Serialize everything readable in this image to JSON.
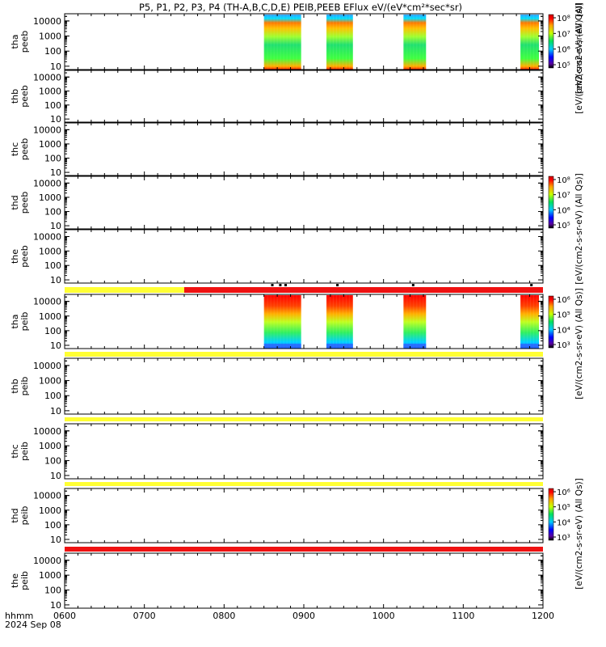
{
  "title": "P5, P1, P2, P3, P4 (TH-A,B,C,D,E) PEIB,PEEB EFlux eV/(eV*cm²*sec*sr)",
  "x_axis_label": "hhmm",
  "date_label": "2024 Sep 08",
  "colorbar_labels": {
    "peeb_top": "[eV/(cm2-s-sr-eV) (All",
    "peeb_mid": "[eV/(cm2-s-sr-eV) (All Qs)]",
    "peeb_overlap": "[eV/(cm2-s-sr-eV) (All Qs)]",
    "peib_main": "[eV/(cm2-s-sr-eV) (All Qs)]",
    "peib_bottom": "[eV/(cm2-s-sr-eV) (All Qs)]"
  },
  "chart_data": {
    "type": "heatmap",
    "x_ticks": [
      "0600",
      "0700",
      "0800",
      "0900",
      "1000",
      "1100",
      "1200"
    ],
    "x_range": [
      "0600",
      "1200"
    ],
    "y_scale": "log",
    "y_ticks": [
      "10",
      "100",
      "1000",
      "10000"
    ],
    "y_range": [
      6,
      30000
    ],
    "panels": [
      {
        "probe": "thc_placeholder",
        "note": ""
      }
    ],
    "panels_list": [
      {
        "name": "tha peeb",
        "line1": "tha",
        "line2": "peeb",
        "bursts": [
          {
            "start": "0830",
            "end": "0858"
          },
          {
            "start": "0917",
            "end": "0937"
          },
          {
            "start": "1015",
            "end": "1032"
          },
          {
            "start": "1143",
            "end": "1157"
          }
        ]
      },
      {
        "name": "thb peeb",
        "line1": "thb",
        "line2": "peeb",
        "bursts": []
      },
      {
        "name": "thc peeb",
        "line1": "thc",
        "line2": "peeb",
        "bursts": []
      },
      {
        "name": "thd peeb",
        "line1": "thd",
        "line2": "peeb",
        "bursts": []
      },
      {
        "name": "the peeb",
        "line1": "the",
        "line2": "peeb",
        "bursts": []
      },
      {
        "name": "tha peib",
        "line1": "tha",
        "line2": "peib",
        "bursts": [
          {
            "start": "0830",
            "end": "0858"
          },
          {
            "start": "0917",
            "end": "0937"
          },
          {
            "start": "1015",
            "end": "1032"
          },
          {
            "start": "1143",
            "end": "1157"
          }
        ]
      },
      {
        "name": "thb peib",
        "line1": "thb",
        "line2": "peib",
        "bursts": []
      },
      {
        "name": "thc peib",
        "line1": "thc",
        "line2": "peib",
        "bursts": []
      },
      {
        "name": "thd peib",
        "line1": "thd",
        "line2": "peib",
        "bursts": []
      },
      {
        "name": "the peib",
        "line1": "the",
        "line2": "peib",
        "bursts": []
      }
    ],
    "colorbars": [
      {
        "for": "tha peeb",
        "ticks": [
          "10⁸",
          "10⁷",
          "10⁶",
          "10⁵"
        ]
      },
      {
        "for": "thd peeb",
        "ticks": [
          "10⁸",
          "10⁷",
          "10⁶",
          "10⁵"
        ]
      },
      {
        "for": "tha peib",
        "ticks": [
          "10⁶",
          "10⁵",
          "10⁴",
          "10³"
        ]
      },
      {
        "for": "thd peib",
        "ticks": [
          "10⁶",
          "10⁵",
          "10⁴",
          "10³"
        ]
      }
    ],
    "mode_bars": [
      {
        "after": "the peeb",
        "segments": [
          {
            "start": "0600",
            "end": "0730",
            "color": "#ffff33"
          },
          {
            "start": "0730",
            "end": "1200",
            "color": "#ee1111"
          }
        ]
      },
      {
        "after": "tha peib",
        "segments": [
          {
            "start": "0600",
            "end": "1200",
            "color": "#ffff33"
          }
        ]
      },
      {
        "after": "thb peib",
        "segments": [
          {
            "start": "0600",
            "end": "1200",
            "color": "#ffff33"
          }
        ]
      },
      {
        "after": "thc peib",
        "segments": [
          {
            "start": "0600",
            "end": "1200",
            "color": "#ffff33"
          }
        ]
      },
      {
        "after": "thd peib",
        "segments": [
          {
            "start": "0600",
            "end": "1200",
            "color": "#ee1111"
          }
        ]
      }
    ]
  }
}
